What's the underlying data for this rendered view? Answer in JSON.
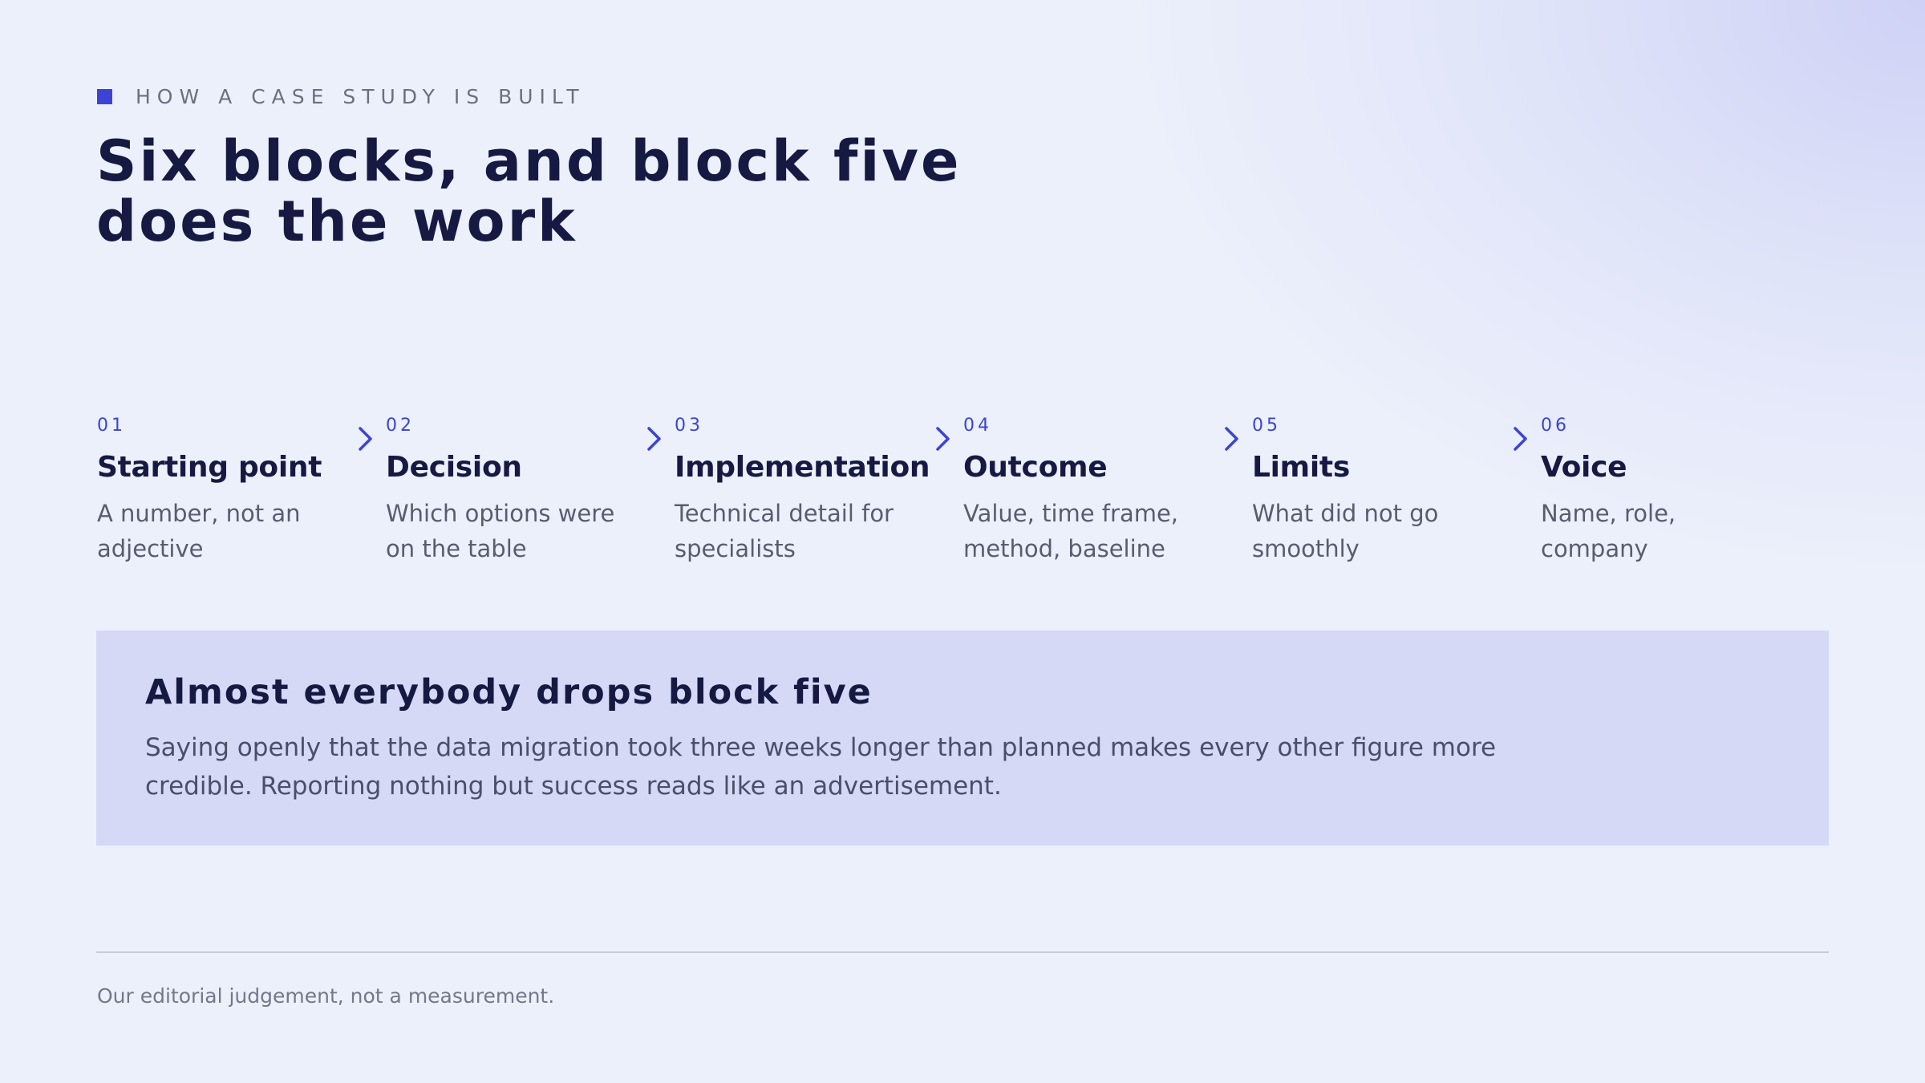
{
  "header": {
    "eyebrow": "HOW A CASE STUDY IS BUILT",
    "title_line1": "Six blocks, and block five",
    "title_line2": "does the work"
  },
  "steps": [
    {
      "number": "01",
      "title": "Starting point",
      "description": "A number, not an adjective"
    },
    {
      "number": "02",
      "title": "Decision",
      "description": "Which options were on the table"
    },
    {
      "number": "03",
      "title": "Implementation",
      "description": "Technical detail for specialists"
    },
    {
      "number": "04",
      "title": "Outcome",
      "description": "Value, time frame, method, baseline"
    },
    {
      "number": "05",
      "title": "Limits",
      "description": "What did not go smoothly"
    },
    {
      "number": "06",
      "title": "Voice",
      "description": "Name, role, company"
    }
  ],
  "callout": {
    "title": "Almost everybody drops block five",
    "body": "Saying openly that the data migration took three weeks longer than planned makes every other figure more credible. Reporting nothing but success reads like an advertisement."
  },
  "footer": {
    "note": "Our editorial judgement, not a measurement."
  },
  "colors": {
    "accent": "#3b44d4",
    "heading": "#161a42",
    "body_text": "#585c70",
    "callout_background": "#d5d9f6",
    "page_background": "#ecf0fb"
  },
  "icons": {
    "eyebrow_marker": "square-marker-icon",
    "step_separator": "chevron-right-icon"
  }
}
